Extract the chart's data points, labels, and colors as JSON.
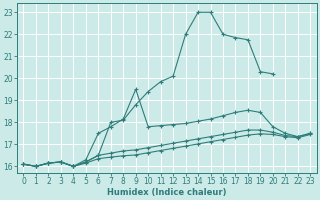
{
  "xlabel": "Humidex (Indice chaleur)",
  "xlim": [
    -0.5,
    23.5
  ],
  "ylim": [
    15.7,
    23.4
  ],
  "xticks": [
    0,
    1,
    2,
    3,
    4,
    5,
    6,
    7,
    8,
    9,
    10,
    11,
    12,
    13,
    14,
    15,
    16,
    17,
    18,
    19,
    20,
    21,
    22,
    23
  ],
  "yticks": [
    16,
    17,
    18,
    19,
    20,
    21,
    22,
    23
  ],
  "bg_color": "#cceae8",
  "line_color": "#2e7d7a",
  "grid_color": "#ffffff",
  "lines": [
    {
      "x": [
        0,
        1,
        2,
        3,
        4,
        5,
        6,
        7,
        8,
        9,
        10,
        11,
        12,
        13,
        14,
        15,
        16,
        17,
        18,
        19,
        20
      ],
      "y": [
        16.1,
        16.0,
        16.15,
        16.2,
        16.0,
        16.2,
        16.5,
        18.0,
        18.1,
        18.8,
        19.4,
        19.85,
        20.1,
        22.0,
        23.0,
        23.0,
        22.0,
        21.85,
        21.75,
        20.3,
        20.2
      ]
    },
    {
      "x": [
        0,
        1,
        2,
        3,
        4,
        5,
        6,
        7,
        8,
        9,
        10,
        11,
        12,
        13,
        14,
        15,
        16,
        17,
        18,
        19,
        20,
        21,
        22,
        23
      ],
      "y": [
        16.1,
        16.0,
        16.15,
        16.2,
        16.0,
        16.3,
        17.5,
        17.8,
        18.15,
        19.5,
        17.8,
        17.85,
        17.9,
        17.95,
        18.05,
        18.15,
        18.3,
        18.45,
        18.55,
        18.45,
        17.8,
        17.5,
        17.35,
        17.5
      ]
    },
    {
      "x": [
        0,
        1,
        2,
        3,
        4,
        5,
        6,
        7,
        8,
        9,
        10,
        11,
        12,
        13,
        14,
        15,
        16,
        17,
        18,
        19,
        20,
        21,
        22,
        23
      ],
      "y": [
        16.1,
        16.0,
        16.15,
        16.2,
        16.0,
        16.2,
        16.5,
        16.6,
        16.7,
        16.75,
        16.85,
        16.95,
        17.05,
        17.15,
        17.25,
        17.35,
        17.45,
        17.55,
        17.65,
        17.65,
        17.55,
        17.4,
        17.35,
        17.5
      ]
    },
    {
      "x": [
        0,
        1,
        2,
        3,
        4,
        5,
        6,
        7,
        8,
        9,
        10,
        11,
        12,
        13,
        14,
        15,
        16,
        17,
        18,
        19,
        20,
        21,
        22,
        23
      ],
      "y": [
        16.1,
        16.0,
        16.15,
        16.2,
        16.0,
        16.15,
        16.35,
        16.42,
        16.48,
        16.52,
        16.62,
        16.72,
        16.82,
        16.92,
        17.02,
        17.12,
        17.22,
        17.32,
        17.42,
        17.48,
        17.45,
        17.35,
        17.3,
        17.45
      ]
    }
  ]
}
